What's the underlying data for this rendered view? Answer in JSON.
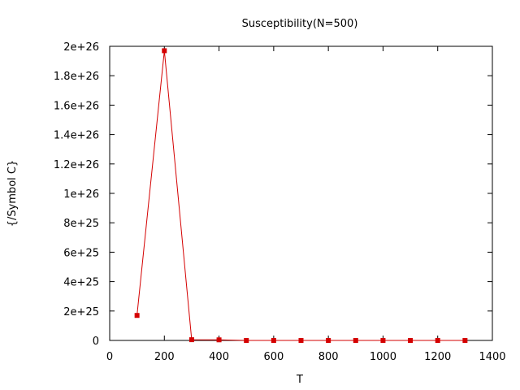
{
  "chart_data": {
    "type": "line",
    "title": "Susceptibility(N=500)",
    "xlabel": "T",
    "ylabel": "{/Symbol C}",
    "xlim": [
      0,
      1400
    ],
    "ylim": [
      0,
      2e+26
    ],
    "x_ticks": [
      "0",
      "200",
      "400",
      "600",
      "800",
      "1000",
      "1200",
      "1400"
    ],
    "y_ticks": [
      "0",
      "2e+25",
      "4e+25",
      "6e+25",
      "8e+25",
      "1e+26",
      "1.2e+26",
      "1.4e+26",
      "1.6e+26",
      "1.8e+26",
      "2e+26"
    ],
    "grid": false,
    "series": [
      {
        "color": "#d40000",
        "x": [
          100,
          200,
          300,
          400,
          500,
          600,
          700,
          800,
          900,
          1000,
          1100,
          1200,
          1300
        ],
        "y": [
          1.7e+25,
          1.97e+26,
          5e+23,
          4e+23,
          0,
          0,
          0,
          0,
          0,
          0,
          0,
          0,
          0
        ]
      }
    ]
  }
}
